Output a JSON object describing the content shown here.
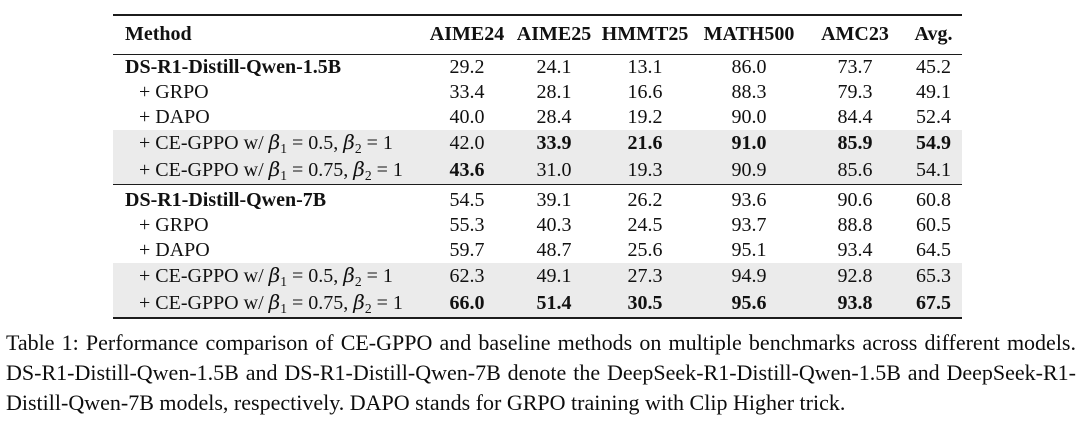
{
  "table": {
    "columns": [
      "Method",
      "AIME24",
      "AIME25",
      "HMMT25",
      "MATH500",
      "AMC23",
      "Avg."
    ],
    "sections": [
      {
        "rows": [
          {
            "method": "DS-R1-Distill-Qwen-1.5B",
            "method_bold": true,
            "indent": false,
            "highlight": false,
            "values": [
              "29.2",
              "24.1",
              "13.1",
              "86.0",
              "73.7",
              "45.2"
            ],
            "bold": [
              false,
              false,
              false,
              false,
              false,
              false
            ]
          },
          {
            "method": "+ GRPO",
            "method_bold": false,
            "indent": true,
            "highlight": false,
            "values": [
              "33.4",
              "28.1",
              "16.6",
              "88.3",
              "79.3",
              "49.1"
            ],
            "bold": [
              false,
              false,
              false,
              false,
              false,
              false
            ]
          },
          {
            "method": "+ DAPO",
            "method_bold": false,
            "indent": true,
            "highlight": false,
            "values": [
              "40.0",
              "28.4",
              "19.2",
              "90.0",
              "84.4",
              "52.4"
            ],
            "bold": [
              false,
              false,
              false,
              false,
              false,
              false
            ]
          },
          {
            "method": "+ CE-GPPO w/ β1 = 0.5, β2 = 1",
            "method_bold": false,
            "indent": true,
            "highlight": true,
            "values": [
              "42.0",
              "33.9",
              "21.6",
              "91.0",
              "85.9",
              "54.9"
            ],
            "bold": [
              false,
              true,
              true,
              true,
              true,
              true
            ]
          },
          {
            "method": "+ CE-GPPO w/ β1 = 0.75, β2 = 1",
            "method_bold": false,
            "indent": true,
            "highlight": true,
            "values": [
              "43.6",
              "31.0",
              "19.3",
              "90.9",
              "85.6",
              "54.1"
            ],
            "bold": [
              true,
              false,
              false,
              false,
              false,
              false
            ]
          }
        ]
      },
      {
        "rows": [
          {
            "method": "DS-R1-Distill-Qwen-7B",
            "method_bold": true,
            "indent": false,
            "highlight": false,
            "values": [
              "54.5",
              "39.1",
              "26.2",
              "93.6",
              "90.6",
              "60.8"
            ],
            "bold": [
              false,
              false,
              false,
              false,
              false,
              false
            ]
          },
          {
            "method": "+ GRPO",
            "method_bold": false,
            "indent": true,
            "highlight": false,
            "values": [
              "55.3",
              "40.3",
              "24.5",
              "93.7",
              "88.8",
              "60.5"
            ],
            "bold": [
              false,
              false,
              false,
              false,
              false,
              false
            ]
          },
          {
            "method": "+ DAPO",
            "method_bold": false,
            "indent": true,
            "highlight": false,
            "values": [
              "59.7",
              "48.7",
              "25.6",
              "95.1",
              "93.4",
              "64.5"
            ],
            "bold": [
              false,
              false,
              false,
              false,
              false,
              false
            ]
          },
          {
            "method": "+ CE-GPPO w/ β1 = 0.5, β2 = 1",
            "method_bold": false,
            "indent": true,
            "highlight": true,
            "values": [
              "62.3",
              "49.1",
              "27.3",
              "94.9",
              "92.8",
              "65.3"
            ],
            "bold": [
              false,
              false,
              false,
              false,
              false,
              false
            ]
          },
          {
            "method": "+ CE-GPPO w/ β1 = 0.75, β2 = 1",
            "method_bold": false,
            "indent": true,
            "highlight": true,
            "values": [
              "66.0",
              "51.4",
              "30.5",
              "95.6",
              "93.8",
              "67.5"
            ],
            "bold": [
              true,
              true,
              true,
              true,
              true,
              true
            ]
          }
        ]
      }
    ]
  },
  "caption": "Table 1: Performance comparison of CE-GPPO and baseline methods on multiple benchmarks across different models. DS-R1-Distill-Qwen-1.5B and DS-R1-Distill-Qwen-7B denote the DeepSeek-R1-Distill-Qwen-1.5B and DeepSeek-R1-Distill-Qwen-7B models, respectively. DAPO stands for GRPO training with Clip Higher trick.",
  "colors": {
    "highlight_row": "#ebebeb",
    "rule": "#1c1c1c",
    "text": "#111111",
    "background": "#ffffff"
  }
}
